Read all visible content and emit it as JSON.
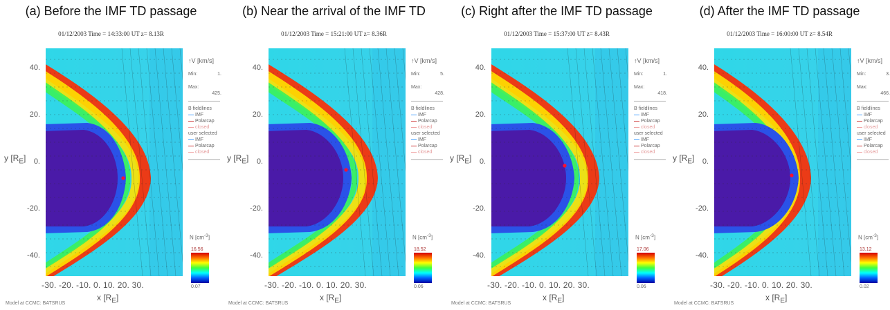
{
  "panels": [
    {
      "title": "(a) Before the IMF TD passage",
      "subtitle": "01/12/2003 Time = 14:33:00 UT z= 8.13R",
      "v_min": "1.",
      "v_max": "425.",
      "n_max": "16.56",
      "n_min": "0.07"
    },
    {
      "title": "(b) Near the arrival of the IMF TD",
      "subtitle": "01/12/2003 Time = 15:21:00 UT z= 8.36R",
      "v_min": "5.",
      "v_max": "428.",
      "n_max": "18.52",
      "n_min": "0.06"
    },
    {
      "title": "(c) Right after the IMF TD passage",
      "subtitle": "01/12/2003 Time = 15:37:00 UT z= 8.43R",
      "v_min": "1.",
      "v_max": "418.",
      "n_max": "17.06",
      "n_min": "0.06"
    },
    {
      "title": "(d) After the IMF TD passage",
      "subtitle": "01/12/2003 Time = 16:00:00 UT z= 8.54R",
      "v_min": "3.",
      "v_max": "466.",
      "n_max": "13.12",
      "n_min": "0.02"
    }
  ],
  "axes": {
    "y_ticks": [
      "40.",
      "20.",
      "0.",
      "-20.",
      "-40."
    ],
    "y_label": "y [R",
    "y_label_sub": "E",
    "x_ticks": "-30. -20. -10.  0.  10.  20.  30.",
    "x_label": "x [R",
    "x_label_sub": "E"
  },
  "legend": {
    "v_label": "V",
    "v_unit": "[km/s]",
    "min_label": "Min:",
    "max_label": "Max:",
    "b_fieldlines": "B fieldlines",
    "imf": "IMF",
    "polarcap": "Polarcap",
    "closed": "closed",
    "user_selected": "user selected",
    "n_label": "N [cm",
    "n_unit_sup": "-3",
    "colors": {
      "imf": "#4aa3ff",
      "polarcap": "#cc3333",
      "closed": "#f0a0a0"
    }
  },
  "footer": "Model at CCMC: BATSRUS"
}
